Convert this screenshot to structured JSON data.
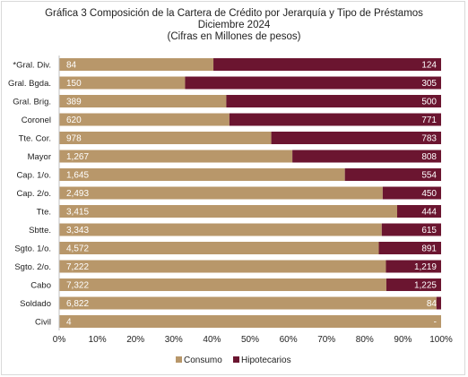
{
  "chart_data": {
    "type": "bar",
    "orientation": "horizontal",
    "stacked": "percent",
    "title_lines": [
      "Gráfica 3  Composición de la Cartera de Crédito por Jerarquía y Tipo de Préstamos",
      "Diciembre 2024",
      "(Cifras en Millones de pesos)"
    ],
    "categories": [
      "*Gral. Div.",
      "Gral. Bgda.",
      "Gral. Brig.",
      "Coronel",
      "Tte. Cor.",
      "Mayor",
      "Cap. 1/o.",
      "Cap. 2/o.",
      "Tte.",
      "Sbtte.",
      "Sgto. 1/o.",
      "Sgto. 2/o.",
      "Cabo",
      "Soldado",
      "Civil"
    ],
    "series": [
      {
        "name": "Consumo",
        "color": "#b8976a",
        "values": [
          84,
          150,
          389,
          620,
          978,
          1267,
          1645,
          2493,
          3415,
          3343,
          4572,
          7222,
          7322,
          6822,
          4
        ],
        "labels": [
          "84",
          "150",
          "389",
          "620",
          "978",
          "1,267",
          "1,645",
          "2,493",
          "3,415",
          "3,343",
          "4,572",
          "7,222",
          "7,322",
          "6,822",
          "4"
        ]
      },
      {
        "name": "Hipotecarios",
        "color": "#6b1530",
        "values": [
          124,
          305,
          500,
          771,
          783,
          808,
          554,
          450,
          444,
          615,
          891,
          1219,
          1225,
          84,
          0
        ],
        "labels": [
          "124",
          "305",
          "500",
          "771",
          "783",
          "808",
          "554",
          "450",
          "444",
          "615",
          "891",
          "1,219",
          "1,225",
          "84",
          "-"
        ]
      }
    ],
    "x_ticks": [
      "0%",
      "10%",
      "20%",
      "30%",
      "40%",
      "50%",
      "60%",
      "70%",
      "80%",
      "90%",
      "100%"
    ],
    "xlim": [
      0,
      100
    ],
    "grid": false,
    "legend_position": "bottom"
  }
}
